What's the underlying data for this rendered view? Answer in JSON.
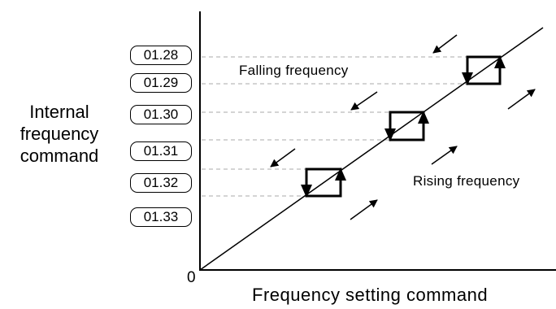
{
  "y_axis_label": [
    "Internal",
    "frequency",
    "command"
  ],
  "x_axis_label": "Frequency setting command",
  "origin_label": "0",
  "parameters": [
    "01.28",
    "01.29",
    "01.30",
    "01.31",
    "01.32",
    "01.33"
  ],
  "annotations": {
    "falling": "Falling frequency",
    "rising": "Rising frequency"
  },
  "colors": {
    "line": "#000000",
    "dashed": "#aaaaaa",
    "background": "#ffffff"
  }
}
